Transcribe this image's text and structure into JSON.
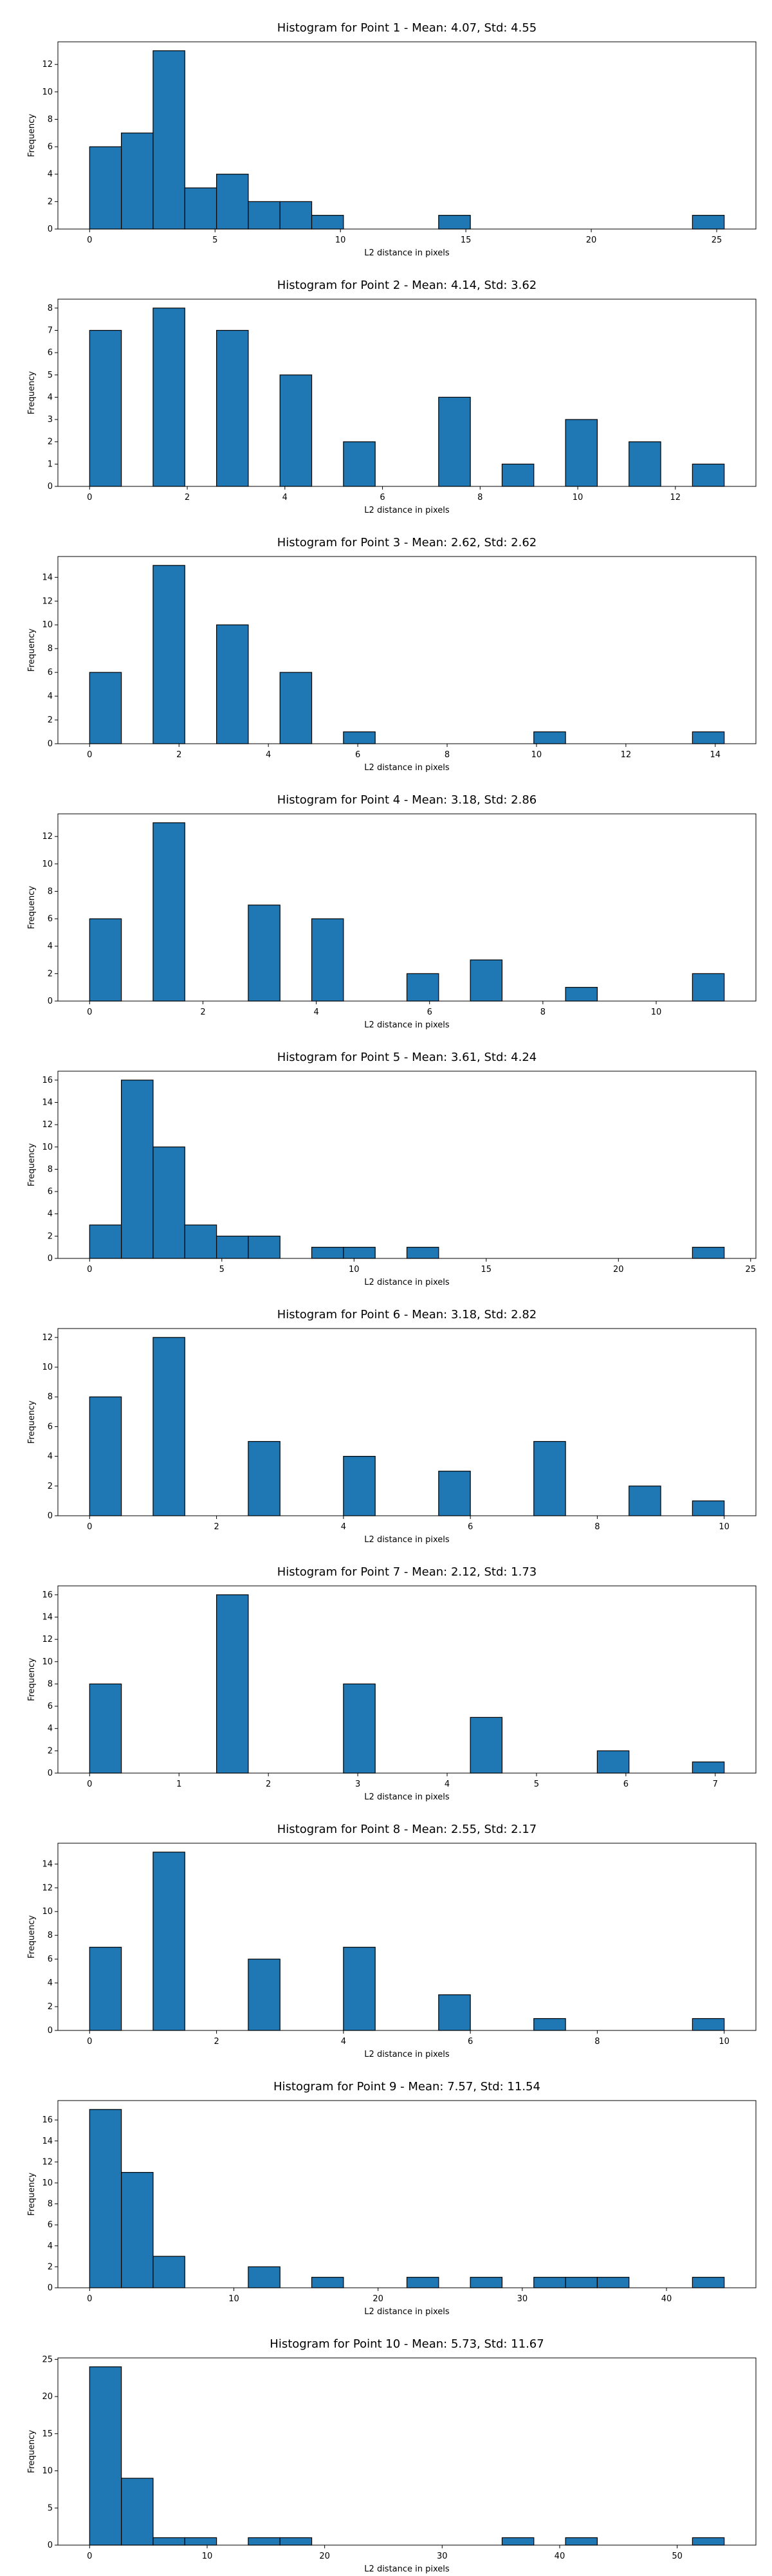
{
  "chart_data": [
    {
      "type": "histogram",
      "title": "Histogram for Point 1 - Mean: 4.07, Std: 4.55",
      "xlabel": "L2 distance in pixels",
      "ylabel": "Frequency",
      "color": "#1f77b4",
      "edgecolor": "#000000",
      "bins": [
        0,
        1.265,
        2.53,
        3.795,
        5.06,
        6.325,
        7.59,
        8.855,
        10.12,
        11.385,
        12.65,
        13.915,
        15.18,
        16.445,
        17.71,
        18.975,
        20.24,
        21.505,
        22.77,
        24.035,
        25.3
      ],
      "values": [
        6,
        7,
        13,
        3,
        4,
        2,
        2,
        1,
        0,
        0,
        0,
        1,
        0,
        0,
        0,
        0,
        0,
        0,
        0,
        1
      ],
      "xlim": [
        -1.265,
        26.565
      ],
      "xticks": [
        0,
        5,
        10,
        15,
        20,
        25
      ],
      "ylim": [
        0,
        13.65
      ],
      "yticks": [
        0,
        2,
        4,
        6,
        8,
        10,
        12
      ]
    },
    {
      "type": "histogram",
      "title": "Histogram for Point 2 - Mean: 4.14, Std: 3.62",
      "xlabel": "L2 distance in pixels",
      "ylabel": "Frequency",
      "color": "#1f77b4",
      "edgecolor": "#000000",
      "bins": [
        0,
        0.65,
        1.3,
        1.95,
        2.6,
        3.25,
        3.9,
        4.55,
        5.2,
        5.85,
        6.5,
        7.15,
        7.8,
        8.45,
        9.1,
        9.75,
        10.4,
        11.05,
        11.7,
        12.35,
        13
      ],
      "values": [
        7,
        0,
        8,
        0,
        7,
        0,
        5,
        0,
        2,
        0,
        0,
        4,
        0,
        1,
        0,
        3,
        0,
        2,
        0,
        1
      ],
      "xlim": [
        -0.65,
        13.65
      ],
      "xticks": [
        0,
        2,
        4,
        6,
        8,
        10,
        12
      ],
      "ylim": [
        0,
        8.4
      ],
      "yticks": [
        0,
        1,
        2,
        3,
        4,
        5,
        6,
        7,
        8
      ]
    },
    {
      "type": "histogram",
      "title": "Histogram for Point 3 - Mean: 2.62, Std: 2.62",
      "xlabel": "L2 distance in pixels",
      "ylabel": "Frequency",
      "color": "#1f77b4",
      "edgecolor": "#000000",
      "bins": [
        0,
        0.71,
        1.42,
        2.13,
        2.84,
        3.55,
        4.26,
        4.97,
        5.68,
        6.39,
        7.1,
        7.81,
        8.52,
        9.23,
        9.94,
        10.65,
        11.36,
        12.07,
        12.78,
        13.49,
        14.2
      ],
      "values": [
        6,
        0,
        15,
        0,
        10,
        0,
        6,
        0,
        1,
        0,
        0,
        0,
        0,
        0,
        1,
        0,
        0,
        0,
        0,
        1
      ],
      "xlim": [
        -0.71,
        14.91
      ],
      "xticks": [
        0,
        2,
        4,
        6,
        8,
        10,
        12,
        14
      ],
      "ylim": [
        0,
        15.75
      ],
      "yticks": [
        0,
        2,
        4,
        6,
        8,
        10,
        12,
        14
      ]
    },
    {
      "type": "histogram",
      "title": "Histogram for Point 4 - Mean: 3.18, Std: 2.86",
      "xlabel": "L2 distance in pixels",
      "ylabel": "Frequency",
      "color": "#1f77b4",
      "edgecolor": "#000000",
      "bins": [
        0,
        0.56,
        1.12,
        1.68,
        2.24,
        2.8,
        3.36,
        3.92,
        4.48,
        5.04,
        5.6,
        6.16,
        6.72,
        7.28,
        7.84,
        8.4,
        8.96,
        9.52,
        10.08,
        10.64,
        11.2
      ],
      "values": [
        6,
        0,
        13,
        0,
        0,
        7,
        0,
        6,
        0,
        0,
        2,
        0,
        3,
        0,
        0,
        1,
        0,
        0,
        0,
        2
      ],
      "xlim": [
        -0.56,
        11.76
      ],
      "xticks": [
        0,
        2,
        4,
        6,
        8,
        10
      ],
      "ylim": [
        0,
        13.65
      ],
      "yticks": [
        0,
        2,
        4,
        6,
        8,
        10,
        12
      ]
    },
    {
      "type": "histogram",
      "title": "Histogram for Point 5 - Mean: 3.61, Std: 4.24",
      "xlabel": "L2 distance in pixels",
      "ylabel": "Frequency",
      "color": "#1f77b4",
      "edgecolor": "#000000",
      "bins": [
        0,
        1.2,
        2.4,
        3.6,
        4.8,
        6,
        7.2,
        8.4,
        9.6,
        10.8,
        12,
        13.2,
        14.4,
        15.6,
        16.8,
        18,
        19.2,
        20.4,
        21.6,
        22.8,
        24
      ],
      "values": [
        3,
        16,
        10,
        3,
        2,
        2,
        0,
        1,
        1,
        0,
        1,
        0,
        0,
        0,
        0,
        0,
        0,
        0,
        0,
        1
      ],
      "xlim": [
        -1.2,
        25.2
      ],
      "xticks": [
        0,
        5,
        10,
        15,
        20,
        25
      ],
      "ylim": [
        0,
        16.8
      ],
      "yticks": [
        0,
        2,
        4,
        6,
        8,
        10,
        12,
        14,
        16
      ]
    },
    {
      "type": "histogram",
      "title": "Histogram for Point 6 - Mean: 3.18, Std: 2.82",
      "xlabel": "L2 distance in pixels",
      "ylabel": "Frequency",
      "color": "#1f77b4",
      "edgecolor": "#000000",
      "bins": [
        0,
        0.5,
        1,
        1.5,
        2,
        2.5,
        3,
        3.5,
        4,
        4.5,
        5,
        5.5,
        6,
        6.5,
        7,
        7.5,
        8,
        8.5,
        9,
        9.5,
        10
      ],
      "values": [
        8,
        0,
        12,
        0,
        0,
        5,
        0,
        0,
        4,
        0,
        0,
        3,
        0,
        0,
        5,
        0,
        0,
        2,
        0,
        1
      ],
      "xlim": [
        -0.5,
        10.5
      ],
      "xticks": [
        0,
        2,
        4,
        6,
        8,
        10
      ],
      "ylim": [
        0,
        12.6
      ],
      "yticks": [
        0,
        2,
        4,
        6,
        8,
        10,
        12
      ]
    },
    {
      "type": "histogram",
      "title": "Histogram for Point 7 - Mean: 2.12, Std: 1.73",
      "xlabel": "L2 distance in pixels",
      "ylabel": "Frequency",
      "color": "#1f77b4",
      "edgecolor": "#000000",
      "bins": [
        0,
        0.355,
        0.71,
        1.065,
        1.42,
        1.775,
        2.13,
        2.485,
        2.84,
        3.195,
        3.55,
        3.905,
        4.26,
        4.615,
        4.97,
        5.325,
        5.68,
        6.035,
        6.39,
        6.745,
        7.1
      ],
      "values": [
        8,
        0,
        0,
        0,
        16,
        0,
        0,
        0,
        8,
        0,
        0,
        0,
        5,
        0,
        0,
        0,
        2,
        0,
        0,
        1
      ],
      "xlim": [
        -0.355,
        7.455
      ],
      "xticks": [
        0,
        1,
        2,
        3,
        4,
        5,
        6,
        7
      ],
      "ylim": [
        0,
        16.8
      ],
      "yticks": [
        0,
        2,
        4,
        6,
        8,
        10,
        12,
        14,
        16
      ]
    },
    {
      "type": "histogram",
      "title": "Histogram for Point 8 - Mean: 2.55, Std: 2.17",
      "xlabel": "L2 distance in pixels",
      "ylabel": "Frequency",
      "color": "#1f77b4",
      "edgecolor": "#000000",
      "bins": [
        0,
        0.5,
        1,
        1.5,
        2,
        2.5,
        3,
        3.5,
        4,
        4.5,
        5,
        5.5,
        6,
        6.5,
        7,
        7.5,
        8,
        8.5,
        9,
        9.5,
        10
      ],
      "values": [
        7,
        0,
        15,
        0,
        0,
        6,
        0,
        0,
        7,
        0,
        0,
        3,
        0,
        0,
        1,
        0,
        0,
        0,
        0,
        1
      ],
      "xlim": [
        -0.5,
        10.5
      ],
      "xticks": [
        0,
        2,
        4,
        6,
        8,
        10
      ],
      "ylim": [
        0,
        15.75
      ],
      "yticks": [
        0,
        2,
        4,
        6,
        8,
        10,
        12,
        14
      ]
    },
    {
      "type": "histogram",
      "title": "Histogram for Point 9 - Mean: 7.57, Std: 11.54",
      "xlabel": "L2 distance in pixels",
      "ylabel": "Frequency",
      "color": "#1f77b4",
      "edgecolor": "#000000",
      "bins": [
        0,
        2.2,
        4.4,
        6.6,
        8.8,
        11,
        13.2,
        15.4,
        17.6,
        19.8,
        22,
        24.2,
        26.4,
        28.6,
        30.8,
        33,
        35.2,
        37.4,
        39.6,
        41.8,
        44
      ],
      "values": [
        17,
        11,
        3,
        0,
        0,
        2,
        0,
        1,
        0,
        0,
        1,
        0,
        1,
        0,
        1,
        1,
        1,
        0,
        0,
        1
      ],
      "xlim": [
        -2.2,
        46.2
      ],
      "xticks": [
        0,
        10,
        20,
        30,
        40
      ],
      "ylim": [
        0,
        17.85
      ],
      "yticks": [
        0,
        2,
        4,
        6,
        8,
        10,
        12,
        14,
        16
      ]
    },
    {
      "type": "histogram",
      "title": "Histogram for Point 10 - Mean: 5.73, Std: 11.67",
      "xlabel": "L2 distance in pixels",
      "ylabel": "Frequency",
      "color": "#1f77b4",
      "edgecolor": "#000000",
      "bins": [
        0,
        2.7,
        5.4,
        8.1,
        10.8,
        13.5,
        16.2,
        18.9,
        21.6,
        24.3,
        27,
        29.7,
        32.4,
        35.1,
        37.8,
        40.5,
        43.2,
        45.9,
        48.6,
        51.3,
        54
      ],
      "values": [
        24,
        9,
        1,
        1,
        0,
        1,
        1,
        0,
        0,
        0,
        0,
        0,
        0,
        1,
        0,
        1,
        0,
        0,
        0,
        1
      ],
      "xlim": [
        -2.7,
        56.7
      ],
      "xticks": [
        0,
        10,
        20,
        30,
        40,
        50
      ],
      "ylim": [
        0,
        25.2
      ],
      "yticks": [
        0,
        5,
        10,
        15,
        20,
        25
      ]
    }
  ]
}
